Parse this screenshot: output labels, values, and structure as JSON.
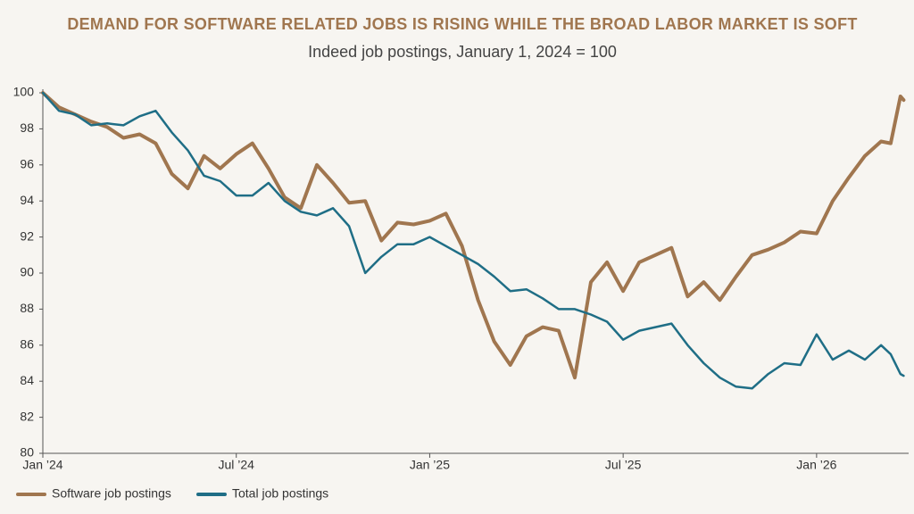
{
  "chart_data": {
    "type": "line",
    "title": "DEMAND FOR SOFTWARE RELATED JOBS IS RISING WHILE THE BROAD LABOR MARKET IS SOFT",
    "subtitle": "Indeed job postings, January 1, 2024 = 100",
    "x": [
      0,
      0.5,
      1,
      1.5,
      2,
      2.5,
      3,
      3.5,
      4,
      4.5,
      5,
      5.5,
      6,
      6.5,
      7,
      7.5,
      8,
      8.5,
      9,
      9.5,
      10,
      10.5,
      11,
      11.5,
      12,
      12.5,
      13,
      13.5,
      14,
      14.5,
      15,
      15.5,
      16,
      16.5,
      17,
      17.5,
      18,
      18.5,
      19,
      19.5,
      20,
      20.5,
      21,
      21.5,
      22,
      22.5,
      23,
      23.5,
      24,
      24.5,
      25,
      25.5,
      26,
      26.3,
      26.6,
      26.7
    ],
    "series": [
      {
        "name": "Software job postings",
        "color": "#a0764f",
        "values": [
          100,
          99.2,
          98.8,
          98.4,
          98.1,
          97.5,
          97.7,
          97.2,
          95.5,
          94.7,
          96.5,
          95.8,
          96.6,
          97.2,
          95.8,
          94.2,
          93.6,
          96.0,
          95.0,
          93.9,
          94.0,
          91.8,
          92.8,
          92.7,
          92.9,
          93.3,
          91.5,
          88.5,
          86.2,
          84.9,
          86.5,
          87.0,
          86.8,
          84.2,
          89.5,
          90.6,
          89.0,
          90.6,
          91.0,
          91.4,
          88.7,
          89.5,
          88.5,
          89.8,
          91.0,
          91.3,
          91.7,
          92.3,
          92.2,
          94.0,
          95.3,
          96.5,
          97.3,
          97.2,
          99.8,
          99.6
        ]
      },
      {
        "name": "Total job postings",
        "color": "#1f6e86",
        "values": [
          100,
          99.0,
          98.8,
          98.2,
          98.3,
          98.2,
          98.7,
          99.0,
          97.8,
          96.8,
          95.4,
          95.1,
          94.3,
          94.3,
          95.0,
          94.0,
          93.4,
          93.2,
          93.6,
          92.6,
          90.0,
          90.9,
          91.6,
          91.6,
          92.0,
          91.5,
          91.0,
          90.5,
          89.8,
          89.0,
          89.1,
          88.6,
          88.0,
          88.0,
          87.7,
          87.3,
          86.3,
          86.8,
          87.0,
          87.2,
          86.0,
          85.0,
          84.2,
          83.7,
          83.6,
          84.4,
          85.0,
          84.9,
          86.6,
          85.2,
          85.7,
          85.2,
          86.0,
          85.5,
          84.4,
          84.3
        ]
      }
    ],
    "xlim": [
      0,
      26.8
    ],
    "xticks": [
      {
        "value": 0,
        "label": "Jan ’24"
      },
      {
        "value": 6,
        "label": "Jul ’24"
      },
      {
        "value": 12,
        "label": "Jan ’25"
      },
      {
        "value": 18,
        "label": "Jul ’25"
      },
      {
        "value": 24,
        "label": "Jan ’26"
      }
    ],
    "ylim": [
      80,
      100
    ],
    "yticks": [
      80,
      82,
      84,
      86,
      88,
      90,
      92,
      94,
      96,
      98,
      100
    ]
  }
}
